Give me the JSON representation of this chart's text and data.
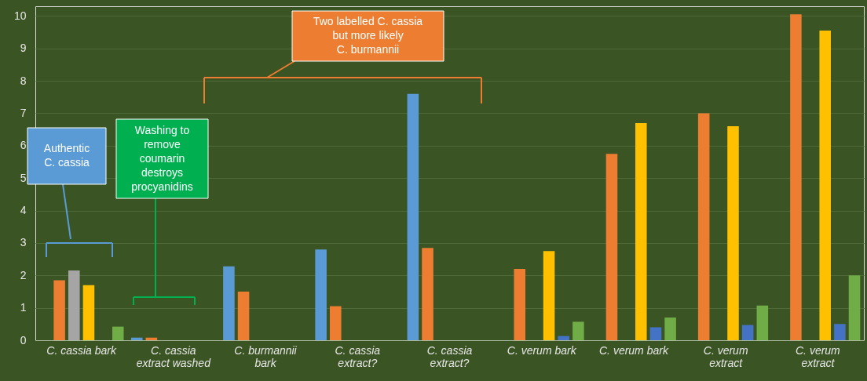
{
  "chart_data": {
    "type": "bar",
    "categories": [
      "C. cassia bark",
      "C. cassia extract washed",
      "C. burmannii bark",
      "C. cassia extract?",
      "C. cassia extract?",
      "C. verum bark",
      "C. verum bark",
      "C. verum extract",
      "C. verum extract"
    ],
    "series": [
      {
        "color": "#5b9bd5",
        "values": [
          null,
          0.08,
          2.28,
          2.8,
          7.6,
          null,
          null,
          null,
          null
        ]
      },
      {
        "color": "#ed7d31",
        "values": [
          1.85,
          0.08,
          1.5,
          1.05,
          2.85,
          2.2,
          5.75,
          7.0,
          10.05
        ]
      },
      {
        "color": "#a5a5a5",
        "values": [
          2.15,
          null,
          null,
          null,
          null,
          null,
          null,
          null,
          null
        ]
      },
      {
        "color": "#ffc000",
        "values": [
          1.7,
          null,
          null,
          null,
          null,
          2.75,
          6.7,
          6.6,
          9.55
        ]
      },
      {
        "color": "#4472c4",
        "values": [
          null,
          null,
          null,
          null,
          null,
          0.13,
          0.4,
          0.47,
          0.5
        ]
      },
      {
        "color": "#70ad47",
        "values": [
          0.42,
          null,
          null,
          null,
          null,
          0.57,
          0.7,
          1.07,
          2.0
        ]
      }
    ],
    "ylim": [
      0,
      10.3
    ],
    "yticks": [
      0,
      1,
      2,
      3,
      4,
      5,
      6,
      7,
      8,
      9,
      10
    ],
    "grid": "y",
    "annotations": [
      "Authentic C. cassia",
      "Washing to remove coumarin destroys procyanidins",
      "Two labelled C. cassia but more likely C. burmannii"
    ]
  }
}
